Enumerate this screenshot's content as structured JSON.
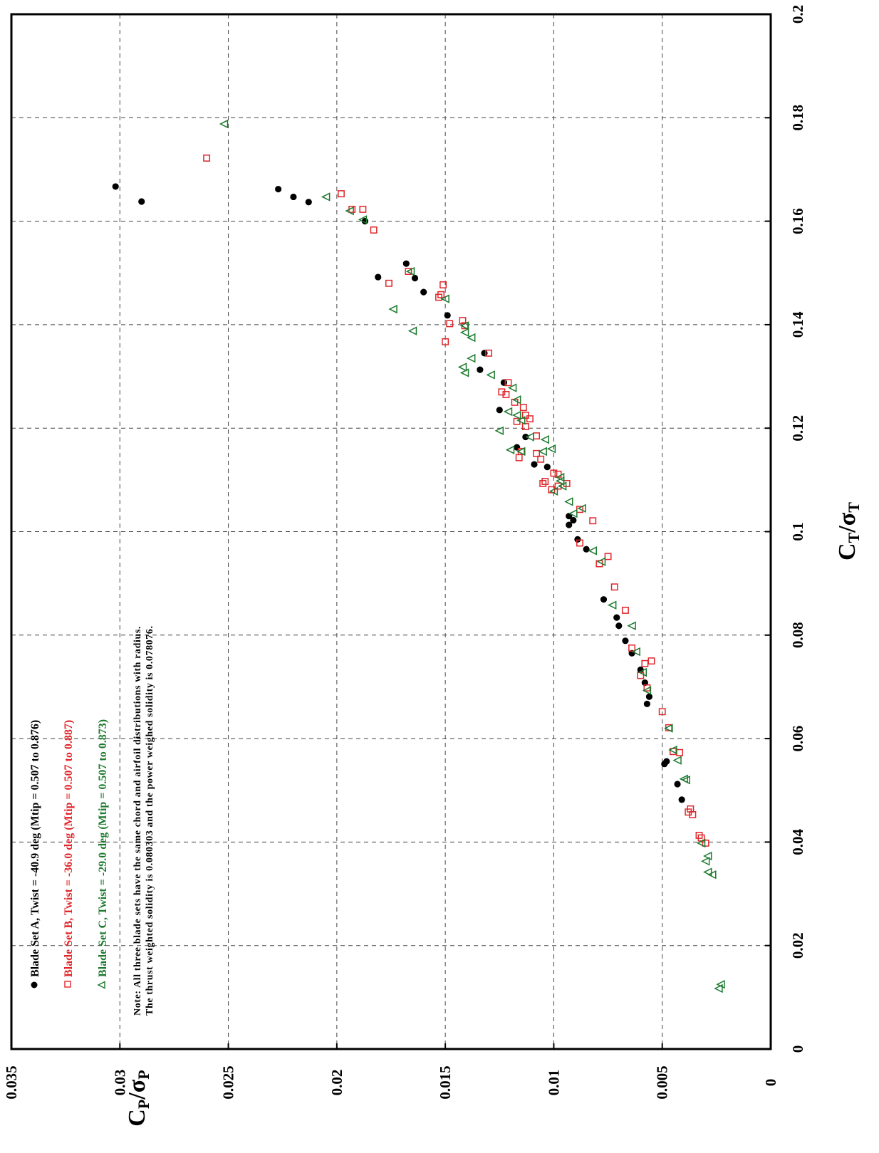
{
  "chart_data": {
    "type": "scatter",
    "xlabel": "CT/σT",
    "ylabel": "CP/σP",
    "xlim": [
      0,
      0.2
    ],
    "ylim": [
      0,
      0.035
    ],
    "x_ticks": [
      "0",
      "0.02",
      "0.04",
      "0.06",
      "0.08",
      "0.1",
      "0.12",
      "0.14",
      "0.16",
      "0.18",
      "0.2"
    ],
    "y_ticks": [
      "0",
      "0.005",
      "0.01",
      "0.015",
      "0.02",
      "0.025",
      "0.03",
      "0.035"
    ],
    "grid": true,
    "legend_position": "bottom-left",
    "series": [
      {
        "name": "Blade Set A, Twist = -40.9 deg  (Mtip = 0.507 to 0.876)",
        "marker": "filled-circle",
        "color": "#000000",
        "points": [
          [
            0.0482,
            0.0041
          ],
          [
            0.0512,
            0.0043
          ],
          [
            0.0551,
            0.0049
          ],
          [
            0.0556,
            0.0048
          ],
          [
            0.0667,
            0.0057
          ],
          [
            0.0681,
            0.0056
          ],
          [
            0.0708,
            0.0058
          ],
          [
            0.0733,
            0.006
          ],
          [
            0.0765,
            0.0064
          ],
          [
            0.0789,
            0.0067
          ],
          [
            0.0818,
            0.007
          ],
          [
            0.0834,
            0.0071
          ],
          [
            0.0869,
            0.0077
          ],
          [
            0.0966,
            0.0085
          ],
          [
            0.0985,
            0.0089
          ],
          [
            0.1013,
            0.0093
          ],
          [
            0.1022,
            0.0091
          ],
          [
            0.103,
            0.0093
          ],
          [
            0.1125,
            0.0103
          ],
          [
            0.113,
            0.0109
          ],
          [
            0.1163,
            0.0117
          ],
          [
            0.1183,
            0.0113
          ],
          [
            0.1235,
            0.0125
          ],
          [
            0.1288,
            0.0123
          ],
          [
            0.1313,
            0.0134
          ],
          [
            0.1345,
            0.0132
          ],
          [
            0.1418,
            0.0149
          ],
          [
            0.1463,
            0.016
          ],
          [
            0.149,
            0.0164
          ],
          [
            0.1492,
            0.0181
          ],
          [
            0.1518,
            0.0168
          ],
          [
            0.16,
            0.0187
          ],
          [
            0.1637,
            0.0213
          ],
          [
            0.1647,
            0.022
          ],
          [
            0.1662,
            0.0227
          ],
          [
            0.1638,
            0.029
          ],
          [
            0.1667,
            0.0302
          ]
        ]
      },
      {
        "name": "Blade Set B, Twist = -36.0 deg  (Mtip = 0.507 to 0.887)",
        "marker": "open-square",
        "color": "#e0262a",
        "points": [
          [
            0.0398,
            0.003
          ],
          [
            0.0408,
            0.0032
          ],
          [
            0.0413,
            0.0033
          ],
          [
            0.0453,
            0.0036
          ],
          [
            0.0458,
            0.0038
          ],
          [
            0.0464,
            0.0037
          ],
          [
            0.0575,
            0.0045
          ],
          [
            0.0573,
            0.0042
          ],
          [
            0.0621,
            0.0047
          ],
          [
            0.0652,
            0.005
          ],
          [
            0.0698,
            0.0057
          ],
          [
            0.0722,
            0.006
          ],
          [
            0.0745,
            0.0058
          ],
          [
            0.075,
            0.0055
          ],
          [
            0.0775,
            0.0064
          ],
          [
            0.0848,
            0.0067
          ],
          [
            0.0893,
            0.0072
          ],
          [
            0.0938,
            0.0079
          ],
          [
            0.0952,
            0.0075
          ],
          [
            0.0978,
            0.0088
          ],
          [
            0.1021,
            0.0082
          ],
          [
            0.1043,
            0.0088
          ],
          [
            0.1081,
            0.0101
          ],
          [
            0.1088,
            0.0098
          ],
          [
            0.1093,
            0.0094
          ],
          [
            0.1093,
            0.0105
          ],
          [
            0.1097,
            0.0104
          ],
          [
            0.1111,
            0.0098
          ],
          [
            0.1113,
            0.01
          ],
          [
            0.114,
            0.0106
          ],
          [
            0.1143,
            0.0116
          ],
          [
            0.1151,
            0.0108
          ],
          [
            0.1155,
            0.0115
          ],
          [
            0.1185,
            0.0108
          ],
          [
            0.1203,
            0.0113
          ],
          [
            0.1213,
            0.0117
          ],
          [
            0.1218,
            0.0111
          ],
          [
            0.1225,
            0.0113
          ],
          [
            0.124,
            0.0114
          ],
          [
            0.125,
            0.0118
          ],
          [
            0.1265,
            0.0122
          ],
          [
            0.127,
            0.0124
          ],
          [
            0.1288,
            0.0121
          ],
          [
            0.1345,
            0.013
          ],
          [
            0.1367,
            0.015
          ],
          [
            0.1398,
            0.0141
          ],
          [
            0.1402,
            0.0148
          ],
          [
            0.1408,
            0.0142
          ],
          [
            0.1453,
            0.0153
          ],
          [
            0.148,
            0.0176
          ],
          [
            0.1458,
            0.0152
          ],
          [
            0.1477,
            0.0151
          ],
          [
            0.1503,
            0.0167
          ],
          [
            0.1583,
            0.0183
          ],
          [
            0.1623,
            0.0188
          ],
          [
            0.1623,
            0.0193
          ],
          [
            0.1653,
            0.0198
          ],
          [
            0.1722,
            0.026
          ]
        ]
      },
      {
        "name": "Blade Set C, Twist = -29.0 deg  (Mtip = 0.507 to 0.873)",
        "marker": "open-triangle",
        "color": "#1c7a2e",
        "points": [
          [
            0.0117,
            0.0024
          ],
          [
            0.0125,
            0.0023
          ],
          [
            0.0337,
            0.0027
          ],
          [
            0.0342,
            0.0029
          ],
          [
            0.0363,
            0.003
          ],
          [
            0.0373,
            0.0029
          ],
          [
            0.0398,
            0.0032
          ],
          [
            0.052,
            0.0039
          ],
          [
            0.0522,
            0.004
          ],
          [
            0.0558,
            0.0043
          ],
          [
            0.0578,
            0.0045
          ],
          [
            0.062,
            0.0047
          ],
          [
            0.0693,
            0.0057
          ],
          [
            0.0728,
            0.0059
          ],
          [
            0.0768,
            0.0062
          ],
          [
            0.0818,
            0.0064
          ],
          [
            0.0858,
            0.0073
          ],
          [
            0.0942,
            0.0078
          ],
          [
            0.0963,
            0.0082
          ],
          [
            0.1035,
            0.0091
          ],
          [
            0.1045,
            0.0087
          ],
          [
            0.1058,
            0.0093
          ],
          [
            0.1078,
            0.01
          ],
          [
            0.1088,
            0.0096
          ],
          [
            0.1098,
            0.0097
          ],
          [
            0.1105,
            0.0097
          ],
          [
            0.1155,
            0.0105
          ],
          [
            0.116,
            0.0101
          ],
          [
            0.1178,
            0.0104
          ],
          [
            0.1183,
            0.0111
          ],
          [
            0.1155,
            0.0115
          ],
          [
            0.1158,
            0.012
          ],
          [
            0.1195,
            0.0125
          ],
          [
            0.1215,
            0.0115
          ],
          [
            0.1225,
            0.0117
          ],
          [
            0.1232,
            0.0121
          ],
          [
            0.1255,
            0.0117
          ],
          [
            0.1278,
            0.0119
          ],
          [
            0.1303,
            0.0129
          ],
          [
            0.1307,
            0.0141
          ],
          [
            0.1318,
            0.0142
          ],
          [
            0.1335,
            0.0138
          ],
          [
            0.1375,
            0.0138
          ],
          [
            0.1385,
            0.0141
          ],
          [
            0.1398,
            0.0141
          ],
          [
            0.1388,
            0.0165
          ],
          [
            0.143,
            0.0174
          ],
          [
            0.145,
            0.015
          ],
          [
            0.1503,
            0.0166
          ],
          [
            0.1603,
            0.0188
          ],
          [
            0.162,
            0.0194
          ],
          [
            0.1647,
            0.0205
          ],
          [
            0.1788,
            0.0252
          ]
        ]
      }
    ],
    "annotation": [
      "Note: All three blade sets have the same chord and airfoil distributions with radius.",
      "The thrust weighted solidity is 0.080303 and the power weighed solidity is 0.078076."
    ]
  }
}
